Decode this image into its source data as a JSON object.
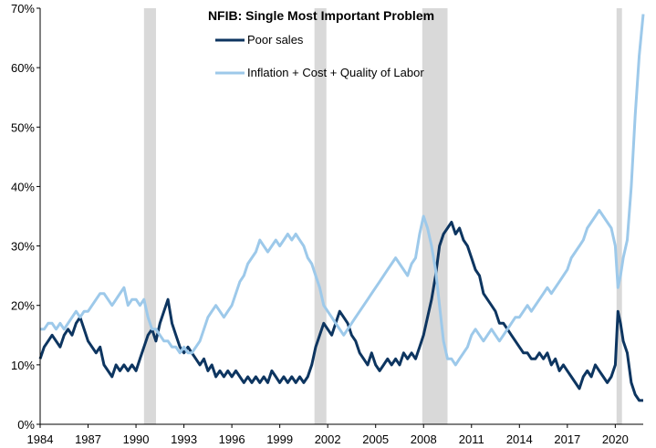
{
  "chart_data": {
    "type": "line",
    "title": "NFIB: Single  Most Important  Problem",
    "xlabel": "",
    "ylabel": "",
    "xlim": [
      1984,
      2021.75
    ],
    "ylim": [
      0,
      70
    ],
    "x_ticks": [
      1984,
      1987,
      1990,
      1993,
      1996,
      1999,
      2002,
      2005,
      2008,
      2011,
      2014,
      2017,
      2020
    ],
    "x_tick_labels": [
      "1984",
      "1987",
      "1990",
      "1993",
      "1996",
      "1999",
      "2002",
      "2005",
      "2008",
      "2011",
      "2014",
      "2017",
      "2020"
    ],
    "y_ticks": [
      0,
      10,
      20,
      30,
      40,
      50,
      60,
      70
    ],
    "y_tick_labels": [
      "0%",
      "10%",
      "20%",
      "30%",
      "40%",
      "50%",
      "60%",
      "70%"
    ],
    "legend_position": "top-center",
    "recessions": [
      {
        "start": 1990.5,
        "end": 1991.25
      },
      {
        "start": 2001.17,
        "end": 2001.92
      },
      {
        "start": 2007.92,
        "end": 2009.5
      },
      {
        "start": 2020.08,
        "end": 2020.42
      }
    ],
    "series": [
      {
        "name": "Poor sales",
        "color": "#0d3560",
        "points": [
          [
            1984.0,
            11
          ],
          [
            1984.25,
            13
          ],
          [
            1984.5,
            14
          ],
          [
            1984.75,
            15
          ],
          [
            1985.0,
            14
          ],
          [
            1985.25,
            13
          ],
          [
            1985.5,
            15
          ],
          [
            1985.75,
            16
          ],
          [
            1986.0,
            15
          ],
          [
            1986.25,
            17
          ],
          [
            1986.5,
            18
          ],
          [
            1986.75,
            16
          ],
          [
            1987.0,
            14
          ],
          [
            1987.25,
            13
          ],
          [
            1987.5,
            12
          ],
          [
            1987.75,
            13
          ],
          [
            1988.0,
            10
          ],
          [
            1988.25,
            9
          ],
          [
            1988.5,
            8
          ],
          [
            1988.75,
            10
          ],
          [
            1989.0,
            9
          ],
          [
            1989.25,
            10
          ],
          [
            1989.5,
            9
          ],
          [
            1989.75,
            10
          ],
          [
            1990.0,
            9
          ],
          [
            1990.25,
            11
          ],
          [
            1990.5,
            13
          ],
          [
            1990.75,
            15
          ],
          [
            1991.0,
            16
          ],
          [
            1991.25,
            14
          ],
          [
            1991.5,
            17
          ],
          [
            1991.75,
            19
          ],
          [
            1992.0,
            21
          ],
          [
            1992.25,
            17
          ],
          [
            1992.5,
            15
          ],
          [
            1992.75,
            13
          ],
          [
            1993.0,
            12
          ],
          [
            1993.25,
            13
          ],
          [
            1993.5,
            12
          ],
          [
            1993.75,
            11
          ],
          [
            1994.0,
            10
          ],
          [
            1994.25,
            11
          ],
          [
            1994.5,
            9
          ],
          [
            1994.75,
            10
          ],
          [
            1995.0,
            8
          ],
          [
            1995.25,
            9
          ],
          [
            1995.5,
            8
          ],
          [
            1995.75,
            9
          ],
          [
            1996.0,
            8
          ],
          [
            1996.25,
            9
          ],
          [
            1996.5,
            8
          ],
          [
            1996.75,
            7
          ],
          [
            1997.0,
            8
          ],
          [
            1997.25,
            7
          ],
          [
            1997.5,
            8
          ],
          [
            1997.75,
            7
          ],
          [
            1998.0,
            8
          ],
          [
            1998.25,
            7
          ],
          [
            1998.5,
            9
          ],
          [
            1998.75,
            8
          ],
          [
            1999.0,
            7
          ],
          [
            1999.25,
            8
          ],
          [
            1999.5,
            7
          ],
          [
            1999.75,
            8
          ],
          [
            2000.0,
            7
          ],
          [
            2000.25,
            8
          ],
          [
            2000.5,
            7
          ],
          [
            2000.75,
            8
          ],
          [
            2001.0,
            10
          ],
          [
            2001.25,
            13
          ],
          [
            2001.5,
            15
          ],
          [
            2001.75,
            17
          ],
          [
            2002.0,
            16
          ],
          [
            2002.25,
            15
          ],
          [
            2002.5,
            17
          ],
          [
            2002.75,
            19
          ],
          [
            2003.0,
            18
          ],
          [
            2003.25,
            17
          ],
          [
            2003.5,
            15
          ],
          [
            2003.75,
            14
          ],
          [
            2004.0,
            12
          ],
          [
            2004.25,
            11
          ],
          [
            2004.5,
            10
          ],
          [
            2004.75,
            12
          ],
          [
            2005.0,
            10
          ],
          [
            2005.25,
            9
          ],
          [
            2005.5,
            10
          ],
          [
            2005.75,
            11
          ],
          [
            2006.0,
            10
          ],
          [
            2006.25,
            11
          ],
          [
            2006.5,
            10
          ],
          [
            2006.75,
            12
          ],
          [
            2007.0,
            11
          ],
          [
            2007.25,
            12
          ],
          [
            2007.5,
            11
          ],
          [
            2007.75,
            13
          ],
          [
            2008.0,
            15
          ],
          [
            2008.25,
            18
          ],
          [
            2008.5,
            21
          ],
          [
            2008.75,
            25
          ],
          [
            2009.0,
            30
          ],
          [
            2009.25,
            32
          ],
          [
            2009.5,
            33
          ],
          [
            2009.75,
            34
          ],
          [
            2010.0,
            32
          ],
          [
            2010.25,
            33
          ],
          [
            2010.5,
            31
          ],
          [
            2010.75,
            30
          ],
          [
            2011.0,
            28
          ],
          [
            2011.25,
            26
          ],
          [
            2011.5,
            25
          ],
          [
            2011.75,
            22
          ],
          [
            2012.0,
            21
          ],
          [
            2012.25,
            20
          ],
          [
            2012.5,
            19
          ],
          [
            2012.75,
            17
          ],
          [
            2013.0,
            17
          ],
          [
            2013.25,
            16
          ],
          [
            2013.5,
            15
          ],
          [
            2013.75,
            14
          ],
          [
            2014.0,
            13
          ],
          [
            2014.25,
            12
          ],
          [
            2014.5,
            12
          ],
          [
            2014.75,
            11
          ],
          [
            2015.0,
            11
          ],
          [
            2015.25,
            12
          ],
          [
            2015.5,
            11
          ],
          [
            2015.75,
            12
          ],
          [
            2016.0,
            10
          ],
          [
            2016.25,
            11
          ],
          [
            2016.5,
            9
          ],
          [
            2016.75,
            10
          ],
          [
            2017.0,
            9
          ],
          [
            2017.25,
            8
          ],
          [
            2017.5,
            7
          ],
          [
            2017.75,
            6
          ],
          [
            2018.0,
            8
          ],
          [
            2018.25,
            9
          ],
          [
            2018.5,
            8
          ],
          [
            2018.75,
            10
          ],
          [
            2019.0,
            9
          ],
          [
            2019.25,
            8
          ],
          [
            2019.5,
            7
          ],
          [
            2019.75,
            8
          ],
          [
            2020.0,
            10
          ],
          [
            2020.17,
            19
          ],
          [
            2020.33,
            17
          ],
          [
            2020.5,
            14
          ],
          [
            2020.75,
            12
          ],
          [
            2021.0,
            7
          ],
          [
            2021.25,
            5
          ],
          [
            2021.5,
            4
          ],
          [
            2021.75,
            4
          ]
        ]
      },
      {
        "name": "Inflation + Cost + Quality of Labor",
        "color": "#9dc9ea",
        "points": [
          [
            1984.0,
            16
          ],
          [
            1984.25,
            16
          ],
          [
            1984.5,
            17
          ],
          [
            1984.75,
            17
          ],
          [
            1985.0,
            16
          ],
          [
            1985.25,
            17
          ],
          [
            1985.5,
            16
          ],
          [
            1985.75,
            17
          ],
          [
            1986.0,
            18
          ],
          [
            1986.25,
            19
          ],
          [
            1986.5,
            18
          ],
          [
            1986.75,
            19
          ],
          [
            1987.0,
            19
          ],
          [
            1987.25,
            20
          ],
          [
            1987.5,
            21
          ],
          [
            1987.75,
            22
          ],
          [
            1988.0,
            22
          ],
          [
            1988.25,
            21
          ],
          [
            1988.5,
            20
          ],
          [
            1988.75,
            21
          ],
          [
            1989.0,
            22
          ],
          [
            1989.25,
            23
          ],
          [
            1989.5,
            20
          ],
          [
            1989.75,
            21
          ],
          [
            1990.0,
            21
          ],
          [
            1990.25,
            20
          ],
          [
            1990.5,
            21
          ],
          [
            1990.75,
            18
          ],
          [
            1991.0,
            16
          ],
          [
            1991.25,
            16
          ],
          [
            1991.5,
            15
          ],
          [
            1991.75,
            14
          ],
          [
            1992.0,
            14
          ],
          [
            1992.25,
            13
          ],
          [
            1992.5,
            13
          ],
          [
            1992.75,
            12
          ],
          [
            1993.0,
            13
          ],
          [
            1993.25,
            12
          ],
          [
            1993.5,
            12
          ],
          [
            1993.75,
            13
          ],
          [
            1994.0,
            14
          ],
          [
            1994.25,
            16
          ],
          [
            1994.5,
            18
          ],
          [
            1994.75,
            19
          ],
          [
            1995.0,
            20
          ],
          [
            1995.25,
            19
          ],
          [
            1995.5,
            18
          ],
          [
            1995.75,
            19
          ],
          [
            1996.0,
            20
          ],
          [
            1996.25,
            22
          ],
          [
            1996.5,
            24
          ],
          [
            1996.75,
            25
          ],
          [
            1997.0,
            27
          ],
          [
            1997.25,
            28
          ],
          [
            1997.5,
            29
          ],
          [
            1997.75,
            31
          ],
          [
            1998.0,
            30
          ],
          [
            1998.25,
            29
          ],
          [
            1998.5,
            30
          ],
          [
            1998.75,
            31
          ],
          [
            1999.0,
            30
          ],
          [
            1999.25,
            31
          ],
          [
            1999.5,
            32
          ],
          [
            1999.75,
            31
          ],
          [
            2000.0,
            32
          ],
          [
            2000.25,
            31
          ],
          [
            2000.5,
            30
          ],
          [
            2000.75,
            28
          ],
          [
            2001.0,
            27
          ],
          [
            2001.25,
            25
          ],
          [
            2001.5,
            23
          ],
          [
            2001.75,
            20
          ],
          [
            2002.0,
            19
          ],
          [
            2002.25,
            18
          ],
          [
            2002.5,
            17
          ],
          [
            2002.75,
            16
          ],
          [
            2003.0,
            15
          ],
          [
            2003.25,
            16
          ],
          [
            2003.5,
            17
          ],
          [
            2003.75,
            18
          ],
          [
            2004.0,
            19
          ],
          [
            2004.25,
            20
          ],
          [
            2004.5,
            21
          ],
          [
            2004.75,
            22
          ],
          [
            2005.0,
            23
          ],
          [
            2005.25,
            24
          ],
          [
            2005.5,
            25
          ],
          [
            2005.75,
            26
          ],
          [
            2006.0,
            27
          ],
          [
            2006.25,
            28
          ],
          [
            2006.5,
            27
          ],
          [
            2006.75,
            26
          ],
          [
            2007.0,
            25
          ],
          [
            2007.25,
            27
          ],
          [
            2007.5,
            28
          ],
          [
            2007.75,
            32
          ],
          [
            2008.0,
            35
          ],
          [
            2008.25,
            33
          ],
          [
            2008.5,
            30
          ],
          [
            2008.75,
            26
          ],
          [
            2009.0,
            20
          ],
          [
            2009.25,
            14
          ],
          [
            2009.5,
            11
          ],
          [
            2009.75,
            11
          ],
          [
            2010.0,
            10
          ],
          [
            2010.25,
            11
          ],
          [
            2010.5,
            12
          ],
          [
            2010.75,
            13
          ],
          [
            2011.0,
            15
          ],
          [
            2011.25,
            16
          ],
          [
            2011.5,
            15
          ],
          [
            2011.75,
            14
          ],
          [
            2012.0,
            15
          ],
          [
            2012.25,
            16
          ],
          [
            2012.5,
            15
          ],
          [
            2012.75,
            14
          ],
          [
            2013.0,
            15
          ],
          [
            2013.25,
            16
          ],
          [
            2013.5,
            17
          ],
          [
            2013.75,
            18
          ],
          [
            2014.0,
            18
          ],
          [
            2014.25,
            19
          ],
          [
            2014.5,
            20
          ],
          [
            2014.75,
            19
          ],
          [
            2015.0,
            20
          ],
          [
            2015.25,
            21
          ],
          [
            2015.5,
            22
          ],
          [
            2015.75,
            23
          ],
          [
            2016.0,
            22
          ],
          [
            2016.25,
            23
          ],
          [
            2016.5,
            24
          ],
          [
            2016.75,
            25
          ],
          [
            2017.0,
            26
          ],
          [
            2017.25,
            28
          ],
          [
            2017.5,
            29
          ],
          [
            2017.75,
            30
          ],
          [
            2018.0,
            31
          ],
          [
            2018.25,
            33
          ],
          [
            2018.5,
            34
          ],
          [
            2018.75,
            35
          ],
          [
            2019.0,
            36
          ],
          [
            2019.25,
            35
          ],
          [
            2019.5,
            34
          ],
          [
            2019.75,
            33
          ],
          [
            2020.0,
            30
          ],
          [
            2020.17,
            23
          ],
          [
            2020.33,
            25
          ],
          [
            2020.5,
            28
          ],
          [
            2020.75,
            31
          ],
          [
            2021.0,
            40
          ],
          [
            2021.25,
            52
          ],
          [
            2021.5,
            62
          ],
          [
            2021.75,
            69
          ]
        ]
      }
    ]
  }
}
